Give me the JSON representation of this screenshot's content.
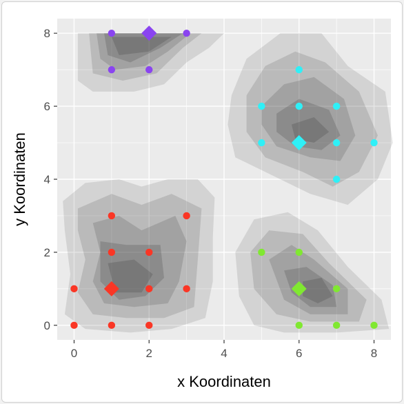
{
  "chart_data": {
    "type": "scatter",
    "xlabel": "x Koordinaten",
    "ylabel": "y Koordinaten",
    "xlim": [
      -0.45,
      8.45
    ],
    "ylim": [
      -0.4,
      8.4
    ],
    "x_ticks": [
      0,
      2,
      4,
      6,
      8
    ],
    "y_ticks": [
      0,
      2,
      4,
      6,
      8
    ],
    "grid": true,
    "legend": "none",
    "panel_background": "#ebebeb",
    "density_fill": "gray",
    "clusters": [
      {
        "color": "#fa3625",
        "points": [
          [
            0,
            0
          ],
          [
            1,
            0
          ],
          [
            2,
            0
          ],
          [
            0,
            1
          ],
          [
            2,
            1
          ],
          [
            3,
            1
          ],
          [
            1,
            2
          ],
          [
            2,
            2
          ],
          [
            1,
            3
          ],
          [
            3,
            3
          ]
        ],
        "centroid": [
          1,
          1
        ]
      },
      {
        "color": "#80e831",
        "points": [
          [
            6,
            0
          ],
          [
            7,
            0
          ],
          [
            8,
            0
          ],
          [
            7,
            1
          ],
          [
            5,
            2
          ],
          [
            6,
            2
          ]
        ],
        "centroid": [
          6,
          1
        ]
      },
      {
        "color": "#2ff0f7",
        "points": [
          [
            7,
            4
          ],
          [
            5,
            5
          ],
          [
            7,
            5
          ],
          [
            8,
            5
          ],
          [
            5,
            6
          ],
          [
            6,
            6
          ],
          [
            7,
            6
          ],
          [
            6,
            7
          ]
        ],
        "centroid": [
          6,
          5
        ]
      },
      {
        "color": "#8a44f0",
        "points": [
          [
            1,
            7
          ],
          [
            2,
            7
          ],
          [
            1,
            8
          ],
          [
            3,
            8
          ]
        ],
        "centroid": [
          2,
          8
        ]
      }
    ],
    "density_regions": [
      {
        "layers": [
          {
            "level": 1,
            "points": [
              [
                -0.3,
                3.4
              ],
              [
                0.3,
                3.9
              ],
              [
                1.2,
                4.0
              ],
              [
                1.8,
                3.8
              ],
              [
                2.5,
                4.0
              ],
              [
                3.3,
                4.0
              ],
              [
                3.75,
                3.5
              ],
              [
                3.7,
                2.4
              ],
              [
                3.7,
                1.2
              ],
              [
                3.5,
                0.2
              ],
              [
                2.6,
                -0.1
              ],
              [
                1.5,
                -0.2
              ],
              [
                0.3,
                -0.1
              ],
              [
                -0.25,
                0.3
              ],
              [
                -0.1,
                1.4
              ],
              [
                -0.25,
                2.6
              ]
            ]
          },
          {
            "level": 2,
            "points": [
              [
                0.1,
                3.2
              ],
              [
                1.0,
                3.6
              ],
              [
                1.8,
                3.3
              ],
              [
                2.6,
                3.6
              ],
              [
                3.4,
                3.2
              ],
              [
                3.3,
                1.8
              ],
              [
                3.2,
                0.5
              ],
              [
                2.4,
                0.2
              ],
              [
                1.4,
                0.2
              ],
              [
                0.5,
                0.3
              ],
              [
                0.1,
                0.9
              ],
              [
                0.3,
                1.8
              ],
              [
                0.1,
                2.6
              ]
            ]
          },
          {
            "level": 3,
            "points": [
              [
                0.5,
                2.8
              ],
              [
                1.2,
                3.0
              ],
              [
                1.8,
                2.6
              ],
              [
                2.7,
                3.0
              ],
              [
                3.0,
                2.3
              ],
              [
                2.8,
                1.2
              ],
              [
                2.5,
                0.6
              ],
              [
                1.6,
                0.5
              ],
              [
                0.8,
                0.6
              ],
              [
                0.5,
                1.2
              ],
              [
                0.7,
                2.0
              ]
            ]
          },
          {
            "level": 4,
            "points": [
              [
                0.7,
                2.3
              ],
              [
                1.4,
                2.2
              ],
              [
                2.3,
                2.2
              ],
              [
                2.4,
                1.3
              ],
              [
                1.9,
                0.8
              ],
              [
                1.2,
                0.7
              ],
              [
                0.7,
                1.2
              ]
            ]
          },
          {
            "level": 5,
            "points": [
              [
                0.9,
                1.7
              ],
              [
                1.6,
                1.8
              ],
              [
                2.1,
                1.4
              ],
              [
                1.8,
                0.9
              ],
              [
                1.1,
                0.9
              ]
            ]
          }
        ]
      },
      {
        "layers": [
          {
            "level": 1,
            "points": [
              [
                4.3,
                2.0
              ],
              [
                4.8,
                2.9
              ],
              [
                5.7,
                3.1
              ],
              [
                6.5,
                2.6
              ],
              [
                7.3,
                1.6
              ],
              [
                8.2,
                0.7
              ],
              [
                8.4,
                -0.1
              ],
              [
                7.0,
                -0.2
              ],
              [
                5.6,
                -0.2
              ],
              [
                4.8,
                0.0
              ],
              [
                4.4,
                0.8
              ]
            ]
          },
          {
            "level": 2,
            "points": [
              [
                4.7,
                2.0
              ],
              [
                5.2,
                2.6
              ],
              [
                6.1,
                2.5
              ],
              [
                6.8,
                1.7
              ],
              [
                7.8,
                0.7
              ],
              [
                7.6,
                0.1
              ],
              [
                6.3,
                0.1
              ],
              [
                5.4,
                0.3
              ],
              [
                4.8,
                1.0
              ]
            ]
          },
          {
            "level": 3,
            "points": [
              [
                5.2,
                1.8
              ],
              [
                5.8,
                2.2
              ],
              [
                6.4,
                1.8
              ],
              [
                7.3,
                1.0
              ],
              [
                7.3,
                0.3
              ],
              [
                6.3,
                0.3
              ],
              [
                5.6,
                0.7
              ]
            ]
          },
          {
            "level": 4,
            "points": [
              [
                5.6,
                1.5
              ],
              [
                6.2,
                1.6
              ],
              [
                6.9,
                1.1
              ],
              [
                7.0,
                0.5
              ],
              [
                6.3,
                0.5
              ],
              [
                5.8,
                0.9
              ]
            ]
          },
          {
            "level": 5,
            "points": [
              [
                6.1,
                1.2
              ],
              [
                6.6,
                1.3
              ],
              [
                6.9,
                0.8
              ],
              [
                6.5,
                0.6
              ],
              [
                6.1,
                0.8
              ]
            ]
          }
        ]
      },
      {
        "layers": [
          {
            "level": 1,
            "points": [
              [
                4.2,
                6.3
              ],
              [
                4.6,
                7.3
              ],
              [
                5.5,
                8.0
              ],
              [
                6.6,
                8.0
              ],
              [
                7.3,
                7.1
              ],
              [
                8.3,
                6.4
              ],
              [
                8.5,
                5.0
              ],
              [
                8.1,
                4.0
              ],
              [
                7.3,
                3.3
              ],
              [
                6.3,
                3.6
              ],
              [
                5.3,
                4.1
              ],
              [
                4.3,
                4.6
              ],
              [
                4.1,
                5.5
              ]
            ]
          },
          {
            "level": 2,
            "points": [
              [
                4.6,
                6.3
              ],
              [
                5.1,
                7.1
              ],
              [
                5.9,
                7.5
              ],
              [
                6.7,
                7.2
              ],
              [
                7.6,
                6.4
              ],
              [
                8.1,
                5.2
              ],
              [
                7.6,
                4.2
              ],
              [
                6.9,
                3.8
              ],
              [
                6.1,
                4.2
              ],
              [
                5.1,
                4.6
              ],
              [
                4.6,
                5.3
              ]
            ]
          },
          {
            "level": 3,
            "points": [
              [
                5.0,
                6.0
              ],
              [
                5.6,
                6.6
              ],
              [
                6.4,
                6.8
              ],
              [
                7.2,
                6.2
              ],
              [
                7.5,
                5.2
              ],
              [
                7.1,
                4.5
              ],
              [
                6.3,
                4.6
              ],
              [
                5.4,
                4.9
              ],
              [
                5.0,
                5.5
              ]
            ]
          },
          {
            "level": 4,
            "points": [
              [
                5.4,
                5.8
              ],
              [
                6.0,
                6.2
              ],
              [
                6.8,
                5.9
              ],
              [
                7.1,
                5.2
              ],
              [
                6.6,
                4.8
              ],
              [
                5.9,
                4.9
              ],
              [
                5.4,
                5.3
              ]
            ]
          },
          {
            "level": 5,
            "points": [
              [
                5.8,
                5.5
              ],
              [
                6.4,
                5.7
              ],
              [
                6.8,
                5.3
              ],
              [
                6.4,
                5.0
              ],
              [
                5.9,
                5.1
              ]
            ]
          }
        ]
      },
      {
        "layers": [
          {
            "level": 1,
            "points": [
              [
                0.1,
                8.0
              ],
              [
                4.0,
                8.0
              ],
              [
                3.6,
                7.6
              ],
              [
                3.0,
                7.2
              ],
              [
                2.4,
                6.6
              ],
              [
                1.6,
                6.4
              ],
              [
                0.5,
                6.4
              ],
              [
                0.1,
                6.7
              ]
            ]
          },
          {
            "level": 2,
            "points": [
              [
                0.4,
                8.0
              ],
              [
                3.4,
                8.0
              ],
              [
                2.9,
                7.6
              ],
              [
                2.2,
                6.9
              ],
              [
                1.3,
                6.7
              ],
              [
                0.5,
                6.9
              ]
            ]
          },
          {
            "level": 3,
            "points": [
              [
                0.6,
                8.0
              ],
              [
                3.1,
                8.0
              ],
              [
                2.5,
                7.5
              ],
              [
                1.9,
                7.1
              ],
              [
                1.1,
                7.0
              ],
              [
                0.7,
                7.3
              ]
            ]
          },
          {
            "level": 4,
            "points": [
              [
                0.8,
                8.0
              ],
              [
                2.9,
                8.0
              ],
              [
                2.3,
                7.6
              ],
              [
                1.5,
                7.2
              ],
              [
                0.9,
                7.4
              ]
            ]
          },
          {
            "level": 5,
            "points": [
              [
                1.0,
                7.9
              ],
              [
                2.6,
                7.9
              ],
              [
                2.0,
                7.5
              ],
              [
                1.2,
                7.4
              ]
            ]
          }
        ]
      }
    ]
  }
}
